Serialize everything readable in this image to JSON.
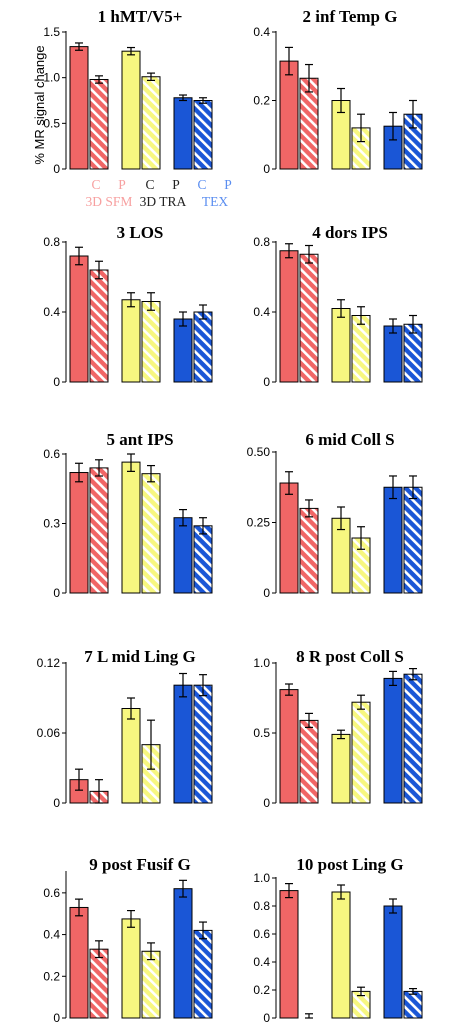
{
  "colors": {
    "red": "#f06666",
    "yellow": "#f7f780",
    "blue": "#1a56d6",
    "red_label": "#f7a0a0",
    "blue_label": "#5b8ef0",
    "black_label": "#222222",
    "bar_outline": "#000000"
  },
  "conditions": [
    {
      "code": "C",
      "pattern": "solid"
    },
    {
      "code": "P",
      "pattern": "hatched"
    }
  ],
  "cue_types": [
    {
      "name": "3D SFM",
      "color": "red"
    },
    {
      "name": "3D TRA",
      "color": "yellow"
    },
    {
      "name": "TEX",
      "color": "blue"
    }
  ],
  "legend": {
    "codes": [
      "C",
      "P",
      "C",
      "P",
      "C",
      "P"
    ],
    "groups": [
      "3D SFM",
      "3D TRA",
      "TEX"
    ]
  },
  "ylabel": "% MR signal change",
  "chart_data": [
    {
      "type": "bar",
      "title": "1 hMT/V5+",
      "ylim": [
        0,
        1.5
      ],
      "yticks": [
        "0",
        "0.5",
        "1.0",
        "1.5"
      ],
      "categories": [
        "3D SFM C",
        "3D SFM P",
        "3D TRA C",
        "3D TRA P",
        "TEX C",
        "TEX P"
      ],
      "values": [
        1.34,
        0.98,
        1.29,
        1.01,
        0.78,
        0.75
      ],
      "errors": [
        0.04,
        0.04,
        0.04,
        0.04,
        0.03,
        0.03
      ]
    },
    {
      "type": "bar",
      "title": "2 inf Temp G",
      "ylim": [
        0,
        0.4
      ],
      "yticks": [
        "0",
        "0.2",
        "0.4"
      ],
      "categories": [
        "3D SFM C",
        "3D SFM P",
        "3D TRA C",
        "3D TRA P",
        "TEX C",
        "TEX P"
      ],
      "values": [
        0.315,
        0.265,
        0.2,
        0.12,
        0.125,
        0.16
      ],
      "errors": [
        0.04,
        0.04,
        0.035,
        0.04,
        0.04,
        0.04
      ]
    },
    {
      "type": "bar",
      "title": "3 LOS",
      "ylim": [
        0,
        0.8
      ],
      "yticks": [
        "0",
        "0.4",
        "0.8"
      ],
      "categories": [
        "3D SFM C",
        "3D SFM P",
        "3D TRA C",
        "3D TRA P",
        "TEX C",
        "TEX P"
      ],
      "values": [
        0.72,
        0.64,
        0.47,
        0.46,
        0.36,
        0.4
      ],
      "errors": [
        0.05,
        0.05,
        0.04,
        0.05,
        0.04,
        0.04
      ]
    },
    {
      "type": "bar",
      "title": "4 dors IPS",
      "ylim": [
        0,
        0.8
      ],
      "yticks": [
        "0",
        "0.4",
        "0.8"
      ],
      "categories": [
        "3D SFM C",
        "3D SFM P",
        "3D TRA C",
        "3D TRA P",
        "TEX C",
        "TEX P"
      ],
      "values": [
        0.75,
        0.73,
        0.42,
        0.38,
        0.32,
        0.33
      ],
      "errors": [
        0.04,
        0.05,
        0.05,
        0.05,
        0.04,
        0.05
      ]
    },
    {
      "type": "bar",
      "title": "5 ant IPS",
      "ylim": [
        0,
        0.6
      ],
      "yticks": [
        "0",
        "0.3",
        "0.6"
      ],
      "categories": [
        "3D SFM C",
        "3D SFM P",
        "3D TRA C",
        "3D TRA P",
        "TEX C",
        "TEX P"
      ],
      "values": [
        0.52,
        0.54,
        0.565,
        0.515,
        0.325,
        0.29
      ],
      "errors": [
        0.04,
        0.035,
        0.04,
        0.035,
        0.035,
        0.035
      ]
    },
    {
      "type": "bar",
      "title": "6 mid Coll S",
      "ylim": [
        0,
        0.5
      ],
      "yticks": [
        "0",
        "0.25",
        "0.50"
      ],
      "categories": [
        "3D SFM C",
        "3D SFM P",
        "3D TRA C",
        "3D TRA P",
        "TEX C",
        "TEX P"
      ],
      "values": [
        0.39,
        0.3,
        0.265,
        0.195,
        0.375,
        0.375
      ],
      "errors": [
        0.04,
        0.03,
        0.04,
        0.04,
        0.04,
        0.04
      ]
    },
    {
      "type": "bar",
      "title": "7 L mid Ling G",
      "ylim": [
        0,
        0.12
      ],
      "yticks": [
        "0",
        "0.06",
        "0.12"
      ],
      "categories": [
        "3D SFM C",
        "3D SFM P",
        "3D TRA C",
        "3D TRA P",
        "TEX C",
        "TEX P"
      ],
      "values": [
        0.02,
        0.01,
        0.081,
        0.05,
        0.101,
        0.101
      ],
      "errors": [
        0.009,
        0.01,
        0.009,
        0.021,
        0.01,
        0.009
      ]
    },
    {
      "type": "bar",
      "title": "8 R post Coll S",
      "ylim": [
        0,
        1.0
      ],
      "yticks": [
        "0",
        "0.5",
        "1.0"
      ],
      "categories": [
        "3D SFM C",
        "3D SFM P",
        "3D TRA C",
        "3D TRA P",
        "TEX C",
        "TEX P"
      ],
      "values": [
        0.81,
        0.59,
        0.49,
        0.72,
        0.89,
        0.92
      ],
      "errors": [
        0.04,
        0.05,
        0.03,
        0.05,
        0.05,
        0.04
      ]
    },
    {
      "type": "bar",
      "title": "9 post Fusif G",
      "ylim": [
        0,
        0.7
      ],
      "yticks": [
        "0",
        "0.2",
        "0.4",
        "0.6"
      ],
      "categories": [
        "3D SFM C",
        "3D SFM P",
        "3D TRA C",
        "3D TRA P",
        "TEX C",
        "TEX P"
      ],
      "values": [
        0.53,
        0.33,
        0.475,
        0.32,
        0.62,
        0.42
      ],
      "errors": [
        0.04,
        0.04,
        0.04,
        0.04,
        0.04,
        0.04
      ]
    },
    {
      "type": "bar",
      "title": "10 post Ling G",
      "ylim": [
        0,
        1.0
      ],
      "yticks": [
        "0",
        "0.2",
        "0.4",
        "0.6",
        "0.8",
        "1.0"
      ],
      "categories": [
        "3D SFM C",
        "3D SFM P",
        "3D TRA C",
        "3D TRA P",
        "TEX C",
        "TEX P"
      ],
      "values": [
        0.91,
        0.0,
        0.9,
        0.19,
        0.8,
        0.19
      ],
      "errors": [
        0.05,
        0.03,
        0.05,
        0.03,
        0.05,
        0.02
      ]
    }
  ]
}
